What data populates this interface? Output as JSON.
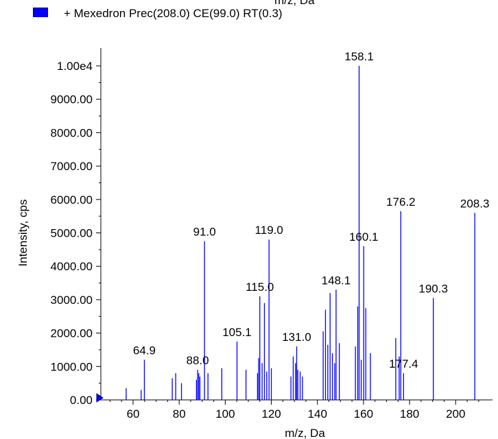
{
  "legend": {
    "label": "+ Mexedron Prec(208.0) CE(99.0) RT(0.3)",
    "color": "#0000ff"
  },
  "chart_data": {
    "type": "bar",
    "title": "",
    "xlabel": "m/z, Da",
    "ylabel": "Intensity, cps",
    "xlim": [
      46,
      216
    ],
    "ylim": [
      0,
      10000
    ],
    "x_ticks": [
      60,
      80,
      100,
      120,
      140,
      160,
      180,
      200
    ],
    "y_ticks": [
      {
        "value": 0,
        "label": "0.00"
      },
      {
        "value": 1000,
        "label": "1000.00"
      },
      {
        "value": 2000,
        "label": "2000.00"
      },
      {
        "value": 3000,
        "label": "3000.00"
      },
      {
        "value": 4000,
        "label": "4000.00"
      },
      {
        "value": 5000,
        "label": "5000.00"
      },
      {
        "value": 6000,
        "label": "6000.00"
      },
      {
        "value": 7000,
        "label": "7000.00"
      },
      {
        "value": 8000,
        "label": "8000.00"
      },
      {
        "value": 9000,
        "label": "9000.00"
      },
      {
        "value": 10000,
        "label": "1.00e4"
      }
    ],
    "bar_color": "#0000ff",
    "series": [
      {
        "name": "+ Mexedron Prec(208.0) CE(99.0) RT(0.3)",
        "x": [
          57,
          63.5,
          64.9,
          77,
          78.5,
          81,
          87.5,
          88,
          88.5,
          89,
          91.0,
          92.5,
          98.5,
          105.1,
          109,
          114,
          114.5,
          115.0,
          116,
          117,
          118,
          119.0,
          120,
          128.5,
          129.5,
          130.5,
          131.0,
          131.5,
          132.5,
          133.5,
          142.5,
          143.5,
          144.5,
          145.5,
          146.5,
          147.5,
          148.1,
          149.5,
          156.5,
          157.5,
          158.1,
          159,
          160.1,
          161,
          163,
          174,
          175.5,
          176.2,
          177.4,
          190.3,
          208.3
        ],
        "y": [
          350,
          300,
          1200,
          650,
          800,
          500,
          600,
          900,
          800,
          700,
          4750,
          800,
          950,
          1750,
          900,
          800,
          1250,
          3100,
          1100,
          2900,
          850,
          4800,
          950,
          700,
          1300,
          1100,
          1600,
          900,
          850,
          700,
          2050,
          2700,
          1650,
          3200,
          1400,
          1100,
          3300,
          1700,
          1600,
          2800,
          10000,
          1200,
          4600,
          2750,
          1400,
          1850,
          1300,
          5650,
          800,
          3050,
          5600
        ]
      }
    ],
    "annotations": [
      {
        "x": 64.9,
        "label": "64.9"
      },
      {
        "x": 88.0,
        "label": "88.0"
      },
      {
        "x": 91.0,
        "label": "91.0"
      },
      {
        "x": 105.1,
        "label": "105.1"
      },
      {
        "x": 115.0,
        "label": "115.0"
      },
      {
        "x": 119.0,
        "label": "119.0"
      },
      {
        "x": 131.0,
        "label": "131.0"
      },
      {
        "x": 148.1,
        "label": "148.1"
      },
      {
        "x": 158.1,
        "label": "158.1"
      },
      {
        "x": 160.1,
        "label": "160.1"
      },
      {
        "x": 176.2,
        "label": "176.2"
      },
      {
        "x": 177.4,
        "label": "177.4"
      },
      {
        "x": 190.3,
        "label": "190.3"
      },
      {
        "x": 208.3,
        "label": "208.3"
      }
    ],
    "grid": false
  }
}
